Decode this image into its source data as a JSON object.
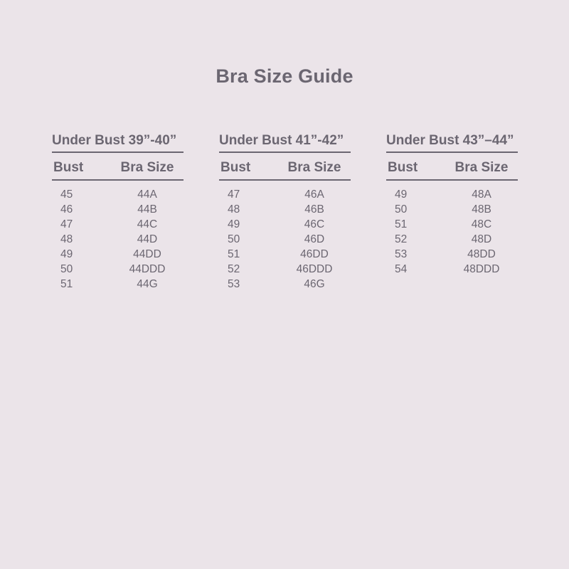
{
  "page": {
    "title": "Bra Size Guide",
    "colors": {
      "background": "#ebe4e9",
      "ink": "#6b6671",
      "rule": "#6b6671"
    }
  },
  "chart_data": [
    {
      "type": "table",
      "title": "Under Bust 39”-40”",
      "columns": [
        "Bust",
        "Bra Size"
      ],
      "rows": [
        [
          "45",
          "44A"
        ],
        [
          "46",
          "44B"
        ],
        [
          "47",
          "44C"
        ],
        [
          "48",
          "44D"
        ],
        [
          "49",
          "44DD"
        ],
        [
          "50",
          "44DDD"
        ],
        [
          "51",
          "44G"
        ]
      ]
    },
    {
      "type": "table",
      "title": "Under Bust 41”-42”",
      "columns": [
        "Bust",
        "Bra Size"
      ],
      "rows": [
        [
          "47",
          "46A"
        ],
        [
          "48",
          "46B"
        ],
        [
          "49",
          "46C"
        ],
        [
          "50",
          "46D"
        ],
        [
          "51",
          "46DD"
        ],
        [
          "52",
          "46DDD"
        ],
        [
          "53",
          "46G"
        ]
      ]
    },
    {
      "type": "table",
      "title": "Under Bust 43”–44”",
      "columns": [
        "Bust",
        "Bra Size"
      ],
      "rows": [
        [
          "49",
          "48A"
        ],
        [
          "50",
          "48B"
        ],
        [
          "51",
          "48C"
        ],
        [
          "52",
          "48D"
        ],
        [
          "53",
          "48DD"
        ],
        [
          "54",
          "48DDD"
        ]
      ]
    }
  ]
}
